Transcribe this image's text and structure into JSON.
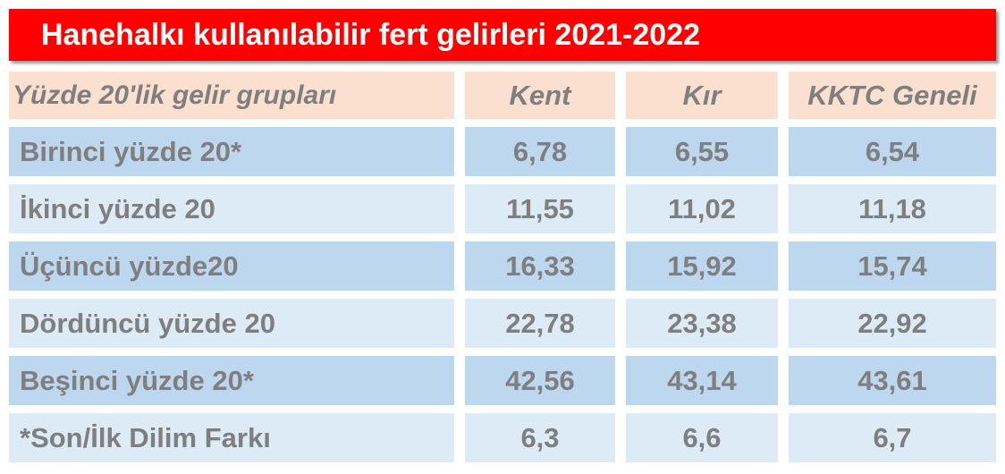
{
  "header": {
    "title": "Hanehalkı kullanılabilir fert gelirleri 2021-2022"
  },
  "table": {
    "columns": [
      "Yüzde 20'lik gelir grupları",
      "Kent",
      "Kır",
      "KKTC Geneli"
    ],
    "rows": [
      [
        "Birinci yüzde 20*",
        "6,78",
        "6,55",
        "6,54"
      ],
      [
        "İkinci yüzde 20",
        "11,55",
        "11,02",
        "11,18"
      ],
      [
        "Üçüncü yüzde20",
        "16,33",
        "15,92",
        "15,74"
      ],
      [
        "Dördüncü yüzde 20",
        "22,78",
        "23,38",
        "22,92"
      ],
      [
        "Beşinci yüzde 20*",
        "42,56",
        "43,14",
        "43,61"
      ],
      [
        "*Son/İlk Dilim Farkı",
        "6,3",
        "6,6",
        "6,7"
      ]
    ]
  }
}
